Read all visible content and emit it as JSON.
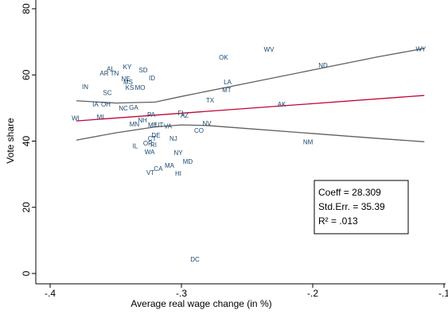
{
  "chart_data": {
    "type": "scatter",
    "x_label": "Average real wage change (in %)",
    "y_label": "Vote share",
    "labels": [
      "WY",
      "WV",
      "OK",
      "ND",
      "KY",
      "AL",
      "SD",
      "AR",
      "TN",
      "ID",
      "NE",
      "MS",
      "LA",
      "IN",
      "KS",
      "MO",
      "MT",
      "SC",
      "TX",
      "IA",
      "OH",
      "AK",
      "NC",
      "GA",
      "PA",
      "FL",
      "AZ",
      "WI",
      "MI",
      "NH",
      "MN",
      "ME",
      "UT",
      "VA",
      "NV",
      "CO",
      "CT",
      "DE",
      "OR",
      "RI",
      "NJ",
      "NM",
      "IL",
      "WA",
      "NY",
      "MD",
      "MA",
      "CA",
      "VT",
      "HI",
      "DC"
    ],
    "x": [
      -0.1176,
      -0.2333,
      -0.2679,
      -0.1921,
      -0.3412,
      -0.3539,
      -0.3291,
      -0.3588,
      -0.3509,
      -0.3224,
      -0.3424,
      -0.3406,
      -0.2648,
      -0.3733,
      -0.3394,
      -0.3315,
      -0.2655,
      -0.3564,
      -0.2782,
      -0.3655,
      -0.3576,
      -0.2236,
      -0.3442,
      -0.3364,
      -0.323,
      -0.3,
      -0.2976,
      -0.3806,
      -0.3618,
      -0.3297,
      -0.3358,
      -0.3218,
      -0.317,
      -0.3103,
      -0.2806,
      -0.2867,
      -0.3224,
      -0.3194,
      -0.3255,
      -0.3212,
      -0.3061,
      -0.2036,
      -0.3352,
      -0.3242,
      -0.3024,
      -0.2952,
      -0.3091,
      -0.3176,
      -0.3236,
      -0.3024,
      -0.2897
    ],
    "values": [
      67.7,
      67.5,
      65.1,
      62.7,
      62.2,
      61.7,
      61.3,
      60.3,
      60.3,
      58.9,
      58.6,
      57.7,
      57.7,
      56.2,
      56.0,
      56.0,
      55.3,
      54.5,
      52.1,
      50.9,
      50.9,
      50.9,
      49.7,
      50.0,
      47.8,
      48.3,
      47.6,
      46.8,
      47.1,
      46.1,
      44.9,
      44.7,
      44.7,
      44.4,
      45.2,
      43.0,
      40.6,
      41.6,
      39.2,
      38.7,
      40.6,
      39.6,
      38.4,
      36.5,
      36.3,
      33.6,
      32.4,
      31.5,
      30.3,
      30.0,
      4.1
    ],
    "label_color": "#1a476f",
    "lines": [
      {
        "color": "#c10534",
        "x": [
          -0.38,
          -0.115
        ],
        "values": [
          46.1,
          53.8
        ]
      },
      {
        "color": "#606060",
        "x": [
          -0.38,
          -0.35,
          -0.32,
          -0.3,
          -0.25,
          -0.2,
          -0.15,
          -0.115
        ],
        "values": [
          52.2,
          51.5,
          51.8,
          53.5,
          57.5,
          61.5,
          65.5,
          68
        ]
      },
      {
        "color": "#606060",
        "x": [
          -0.38,
          -0.35,
          -0.32,
          -0.3,
          -0.28,
          -0.25,
          -0.2,
          -0.15,
          -0.115
        ],
        "values": [
          40.3,
          42.5,
          44.3,
          44.9,
          44.7,
          43.8,
          42.3,
          40.8,
          39.8
        ]
      }
    ],
    "annotation": [
      "Coeff = 28.309",
      "Std.Err. = 35.39",
      "R² = .013"
    ],
    "xlim": [
      -0.4,
      -0.1
    ],
    "xticks": [
      {
        "value": -0.4,
        "label": "-.4"
      },
      {
        "value": -0.3,
        "label": "-.3"
      },
      {
        "value": -0.2,
        "label": "-.2"
      },
      {
        "value": -0.1,
        "label": "-.1"
      }
    ],
    "ylim": [
      0,
      80
    ],
    "yticks": [
      0,
      20,
      40,
      60,
      80
    ]
  }
}
